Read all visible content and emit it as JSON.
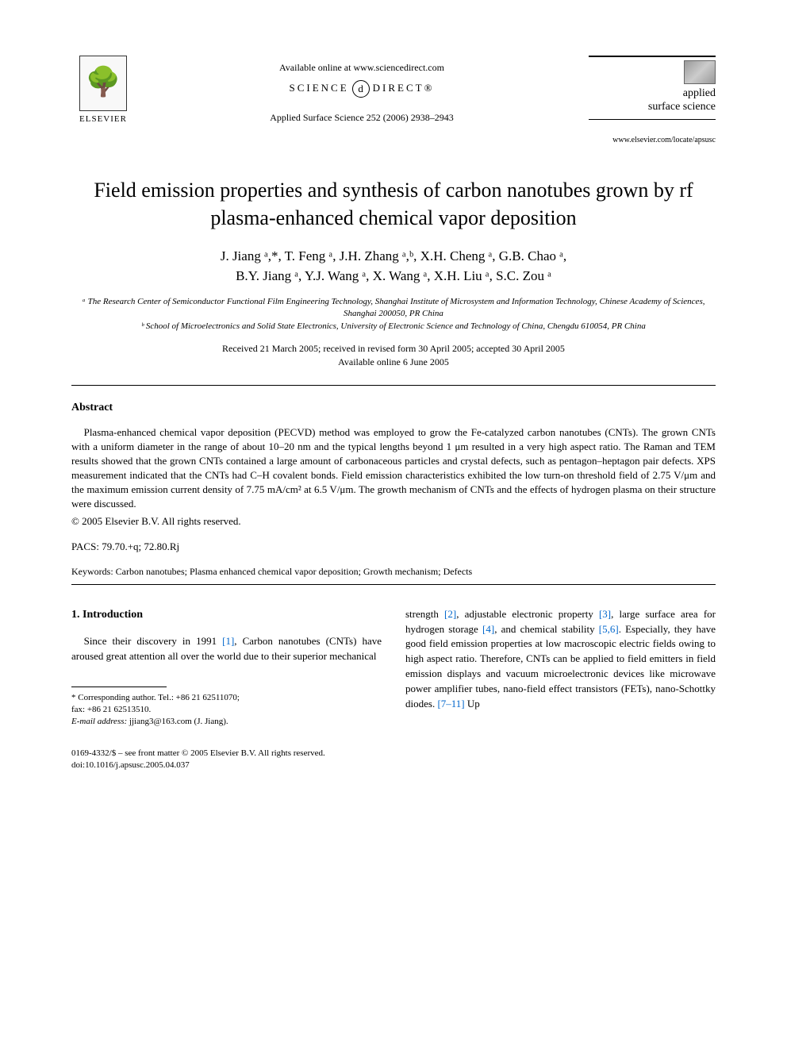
{
  "header": {
    "publisher": "ELSEVIER",
    "available_online": "Available online at www.sciencedirect.com",
    "sciencedirect_left": "SCIENCE",
    "sciencedirect_right": "DIRECT®",
    "journal_ref": "Applied Surface Science 252 (2006) 2938–2943",
    "journal_name_line1": "applied",
    "journal_name_line2": "surface science",
    "journal_url": "www.elsevier.com/locate/apsusc"
  },
  "title": "Field emission properties and synthesis of carbon nanotubes grown by rf plasma-enhanced chemical vapor deposition",
  "authors_line1": "J. Jiang ᵃ,*, T. Feng ᵃ, J.H. Zhang ᵃ,ᵇ, X.H. Cheng ᵃ, G.B. Chao ᵃ,",
  "authors_line2": "B.Y. Jiang ᵃ, Y.J. Wang ᵃ, X. Wang ᵃ, X.H. Liu ᵃ, S.C. Zou ᵃ",
  "affiliation_a": "ᵃ The Research Center of Semiconductor Functional Film Engineering Technology, Shanghai Institute of Microsystem and Information Technology, Chinese Academy of Sciences, Shanghai 200050, PR China",
  "affiliation_b": "ᵇ School of Microelectronics and Solid State Electronics, University of Electronic Science and Technology of China, Chengdu 610054, PR China",
  "dates_line1": "Received 21 March 2005; received in revised form 30 April 2005; accepted 30 April 2005",
  "dates_line2": "Available online 6 June 2005",
  "abstract_heading": "Abstract",
  "abstract_body": "Plasma-enhanced chemical vapor deposition (PECVD) method was employed to grow the Fe-catalyzed carbon nanotubes (CNTs). The grown CNTs with a uniform diameter in the range of about 10–20 nm and the typical lengths beyond 1 μm resulted in a very high aspect ratio. The Raman and TEM results showed that the grown CNTs contained a large amount of carbonaceous particles and crystal defects, such as pentagon–heptagon pair defects. XPS measurement indicated that the CNTs had C–H covalent bonds. Field emission characteristics exhibited the low turn-on threshold field of 2.75 V/μm and the maximum emission current density of 7.75 mA/cm² at 6.5 V/μm. The growth mechanism of CNTs and the effects of hydrogen plasma on their structure were discussed.",
  "copyright": "© 2005 Elsevier B.V. All rights reserved.",
  "pacs_label": "PACS:",
  "pacs_value": "79.70.+q; 72.80.Rj",
  "keywords_label": "Keywords:",
  "keywords_value": "Carbon nanotubes; Plasma enhanced chemical vapor deposition; Growth mechanism; Defects",
  "section1_heading": "1. Introduction",
  "intro_left": "Since their discovery in 1991 [1], Carbon nanotubes (CNTs) have aroused great attention all over the world due to their superior mechanical",
  "intro_right": "strength [2], adjustable electronic property [3], large surface area for hydrogen storage [4], and chemical stability [5,6]. Especially, they have good field emission properties at low macroscopic electric fields owing to high aspect ratio. Therefore, CNTs can be applied to field emitters in field emission displays and vacuum microelectronic devices like microwave power amplifier tubes, nano-field effect transistors (FETs), nano-Schottky diodes. [7–11] Up",
  "footnote_corresponding": "* Corresponding author. Tel.: +86 21 62511070;",
  "footnote_fax": "fax: +86 21 62513510.",
  "footnote_email_label": "E-mail address:",
  "footnote_email": "jjiang3@163.com (J. Jiang).",
  "footer_issn": "0169-4332/$ – see front matter © 2005 Elsevier B.V. All rights reserved.",
  "footer_doi": "doi:10.1016/j.apsusc.2005.04.037",
  "refs": {
    "r1": "[1]",
    "r2": "[2]",
    "r3": "[3]",
    "r4": "[4]",
    "r56": "[5,6]",
    "r711": "[7–11]"
  },
  "colors": {
    "text": "#000000",
    "link": "#0066cc",
    "background": "#ffffff"
  },
  "typography": {
    "title_fontsize": 26,
    "body_fontsize": 13,
    "author_fontsize": 17,
    "affiliation_fontsize": 11,
    "footnote_fontsize": 11
  }
}
